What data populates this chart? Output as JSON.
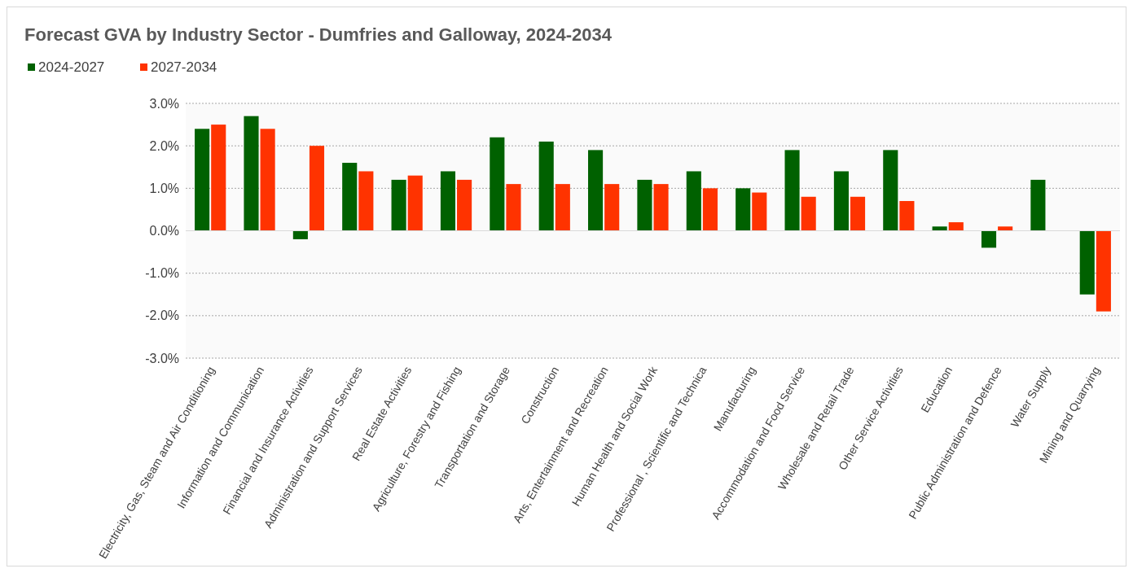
{
  "chart_data": {
    "type": "bar",
    "title": "Forecast GVA by Industry Sector - Dumfries and Galloway, 2024-2034",
    "categories": [
      "Electricity, Gas, Steam and Air Conditioning",
      "Information and Communication",
      "Financial and Insurance Activities",
      "Administration and Support Services",
      "Real Estate Activities",
      "Agriculture, Forestry and Fishing",
      "Transportation and Storage",
      "Construction",
      "Arts, Entertainment and Recreation",
      "Human Health and Social Work",
      "Professional , Scientific and Technica",
      "Manufacturing",
      "Accommodation and Food Service",
      "Wholesale and Retail Trade",
      "Other Service Activities",
      "Education",
      "Public Administration and Defence",
      "Water Supply",
      "Mining and Quarrying"
    ],
    "series": [
      {
        "name": "2024-2027",
        "color": "#006100",
        "values": [
          2.4,
          2.7,
          -0.2,
          1.6,
          1.2,
          1.4,
          2.2,
          2.1,
          1.9,
          1.2,
          1.4,
          1.0,
          1.9,
          1.4,
          1.9,
          0.1,
          -0.4,
          1.2,
          -1.5
        ]
      },
      {
        "name": "2027-2034",
        "color": "#ff3300",
        "values": [
          2.5,
          2.4,
          2.0,
          1.4,
          1.3,
          1.2,
          1.1,
          1.1,
          1.1,
          1.1,
          1.0,
          0.9,
          0.8,
          0.8,
          0.7,
          0.2,
          0.1,
          0,
          -1.9
        ]
      }
    ],
    "ylim": [
      -3,
      3
    ],
    "yticks": [
      {
        "value": -3,
        "label": "-3.0%"
      },
      {
        "value": -2,
        "label": "-2.0%"
      },
      {
        "value": -1,
        "label": "-1.0%"
      },
      {
        "value": 0,
        "label": "0.0%"
      },
      {
        "value": 1,
        "label": "1.0%"
      },
      {
        "value": 2,
        "label": "2.0%"
      },
      {
        "value": 3,
        "label": "3.0%"
      }
    ],
    "grid": "y",
    "legend": "top left"
  }
}
